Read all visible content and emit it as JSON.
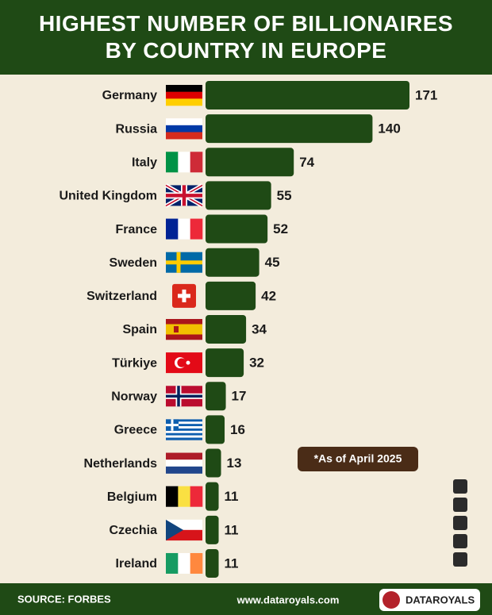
{
  "chart_data": {
    "type": "bar",
    "orientation": "horizontal",
    "title": "HIGHEST NUMBER OF BILLIONAIRES BY COUNTRY IN EUROPE",
    "categories": [
      "Germany",
      "Russia",
      "Italy",
      "United Kingdom",
      "France",
      "Sweden",
      "Switzerland",
      "Spain",
      "Türkiye",
      "Norway",
      "Greece",
      "Netherlands",
      "Belgium",
      "Czechia",
      "Ireland"
    ],
    "values": [
      171,
      140,
      74,
      55,
      52,
      45,
      42,
      34,
      32,
      17,
      16,
      13,
      11,
      11,
      11
    ],
    "color": "#1f4a15",
    "annotation": "*As of April 2025",
    "source": "SOURCE: FORBES",
    "website": "www.dataroyals.com",
    "brand": "DATAROYALS"
  }
}
